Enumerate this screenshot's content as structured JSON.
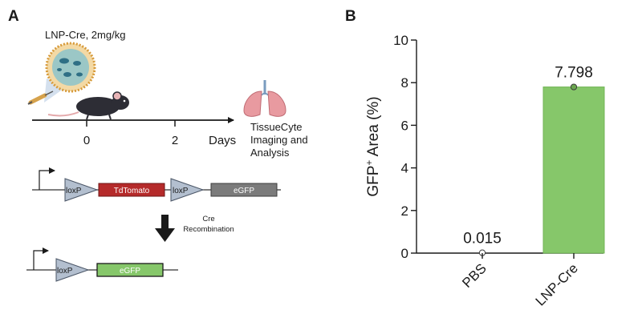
{
  "panel_a": {
    "label": "A",
    "dose_label": "LNP-Cre, 2mg/kg",
    "timeline": {
      "ticks": [
        "0",
        "2"
      ],
      "unit": "Days"
    },
    "readout": [
      "TissueCyte",
      "Imaging and",
      "Analysis"
    ],
    "construct_before": {
      "loxp1": "loxP",
      "reporter": "TdTomato",
      "loxp2": "loxP",
      "gene": "eGFP"
    },
    "recombination": [
      "Cre",
      "Recombination"
    ],
    "construct_after": {
      "loxp": "loxP",
      "gene": "eGFP"
    }
  },
  "panel_b": {
    "label": "B"
  },
  "colors": {
    "bar_fill": "#86c76a",
    "bar_stroke": "#73b457",
    "tdtomato": "#b52a2a",
    "egfp_gray": "#7b7b7b",
    "loxp": "#b3bfcf",
    "lung": "#e89aa0"
  },
  "chart_data": {
    "type": "bar",
    "categories": [
      "PBS",
      "LNP-Cre"
    ],
    "values": [
      0.015,
      7.798
    ],
    "data_labels": [
      "0.015",
      "7.798"
    ],
    "ylabel_main": "GFP",
    "ylabel_sup": "+",
    "ylabel_rest": " Area (%)",
    "ylim": [
      0,
      10
    ],
    "yticks": [
      0,
      2,
      4,
      6,
      8,
      10
    ],
    "ytick_labels": [
      "0",
      "2",
      "4",
      "6",
      "8",
      "10"
    ],
    "grid": false,
    "legend": "none"
  }
}
